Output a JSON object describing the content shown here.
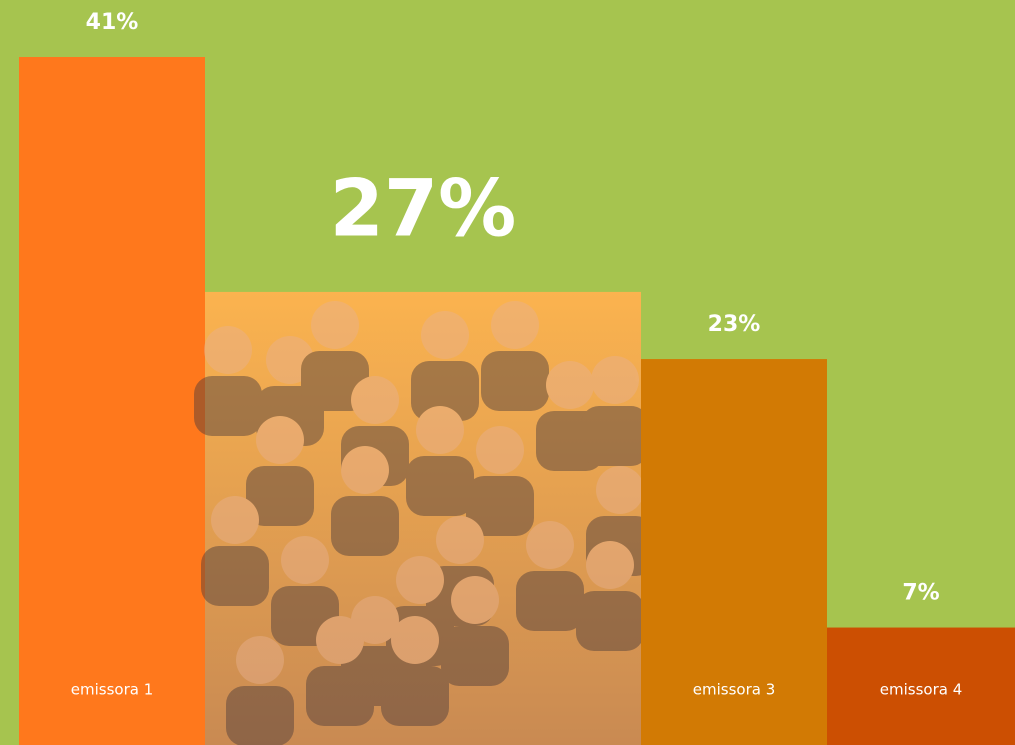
{
  "chart_data": {
    "type": "bar",
    "categories": [
      "emissora 1",
      null,
      "emissora 3",
      "emissora 4"
    ],
    "values": [
      41,
      27,
      23,
      7
    ],
    "value_labels": [
      "41%",
      "27%",
      "23%",
      "7%"
    ],
    "colors": [
      "#ff781c",
      "#f6ad4c",
      "#d27a04",
      "#cc4f02"
    ]
  }
}
